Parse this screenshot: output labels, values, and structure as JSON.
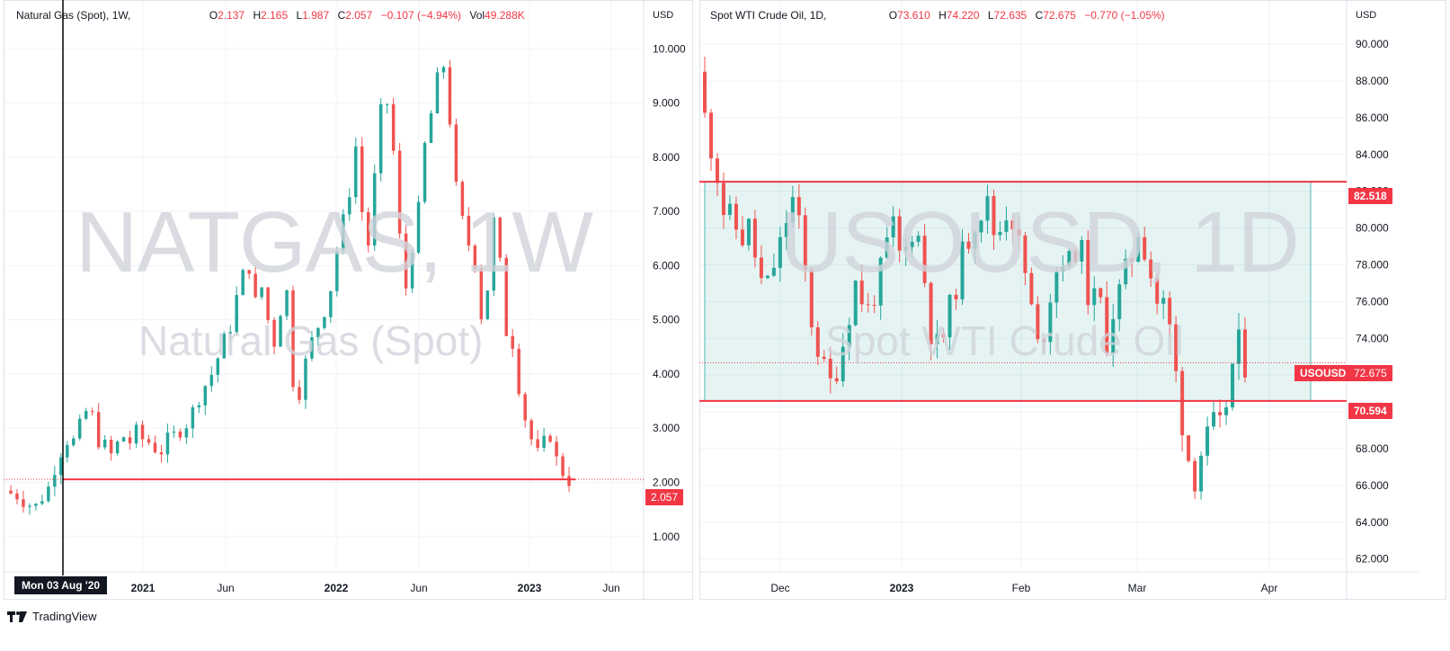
{
  "brand": {
    "name": "TradingView",
    "icon": "tradingview-logo-icon"
  },
  "left": {
    "legend": {
      "symbol": "Natural Gas (Spot), 1W,",
      "open": "2.137",
      "high": "2.165",
      "low": "1.987",
      "close": "2.057",
      "change": "−0.107 (−4.94%)",
      "volume": "49.288K"
    },
    "watermark": {
      "ticker": "NATGAS, 1W",
      "name": "Natural Gas (Spot)"
    },
    "currency": "USD",
    "current_price": "2.057",
    "crosshair_date": "Mon 03 Aug '20"
  },
  "right": {
    "legend": {
      "symbol": "Spot WTI Crude Oil, 1D,",
      "open": "73.610",
      "high": "74.220",
      "low": "72.635",
      "close": "72.675",
      "change": "−0.770 (−1.05%)"
    },
    "watermark": {
      "ticker": "USOUSD, 1D",
      "name": "Spot WTI Crude Oil"
    },
    "currency": "USD",
    "current_price": "72.675",
    "current_symbol": "USOUSD",
    "range_high_label": "82.518",
    "range_low_label": "70.594"
  },
  "chart_data": [
    {
      "type": "candlestick",
      "title": "Natural Gas (Spot), 1W",
      "x_tick_labels": [
        "2021",
        "Jun",
        "2022",
        "Jun",
        "2023",
        "Jun"
      ],
      "y_tick_labels": [
        "1.000",
        "2.000",
        "3.000",
        "4.000",
        "5.000",
        "6.000",
        "7.000",
        "8.000",
        "9.000",
        "10.000"
      ],
      "ylim": [
        0.35,
        10.9
      ],
      "ylabel": "USD",
      "series": [
        {
          "name": "Natural Gas (Spot)",
          "close_path": [
            1.85,
            1.8,
            1.78,
            1.7,
            1.6,
            1.55,
            1.75,
            1.9,
            2.3,
            2.6,
            2.8,
            2.75,
            3.0,
            3.3,
            3.2,
            2.8,
            2.65,
            2.5,
            2.7,
            2.85,
            2.75,
            2.9,
            2.8,
            2.75,
            2.65,
            2.6,
            2.75,
            2.85,
            3.0,
            3.1,
            3.3,
            3.6,
            3.8,
            4.0,
            4.3,
            4.6,
            4.9,
            5.4,
            5.8,
            6.0,
            5.3,
            5.6,
            5.0,
            4.6,
            5.2,
            5.5,
            3.9,
            3.7,
            4.2,
            4.6,
            4.9,
            5.2,
            5.6,
            6.3,
            6.8,
            7.4,
            8.2,
            7.0,
            6.4,
            7.6,
            8.8,
            9.0,
            8.1,
            6.5,
            5.6,
            6.4,
            7.0,
            8.2,
            8.8,
            9.4,
            9.7,
            8.7,
            7.4,
            6.8,
            6.4,
            6.1,
            5.1,
            5.6,
            6.8,
            6.0,
            4.8,
            4.6,
            3.8,
            3.2,
            2.8,
            2.5,
            2.7,
            2.9,
            2.4,
            2.2,
            2.057
          ]
        }
      ]
    },
    {
      "type": "candlestick",
      "title": "Spot WTI Crude Oil, 1D",
      "x_tick_labels": [
        "Dec",
        "2023",
        "Feb",
        "Mar",
        "Apr"
      ],
      "y_tick_labels": [
        "62.000",
        "64.000",
        "66.000",
        "68.000",
        "70.000",
        "72.000",
        "74.000",
        "76.000",
        "78.000",
        "80.000",
        "82.000",
        "84.000",
        "86.000",
        "88.000",
        "90.000"
      ],
      "ylim": [
        61.3,
        92.4
      ],
      "ylabel": "USD",
      "series": [
        {
          "name": "Spot WTI Crude Oil",
          "close_path": [
            88.5,
            86.0,
            84.5,
            83.0,
            81.0,
            80.5,
            80.0,
            79.5,
            80.0,
            78.5,
            77.0,
            76.8,
            78.0,
            79.0,
            80.5,
            81.5,
            80.0,
            77.5,
            75.0,
            73.5,
            72.2,
            71.5,
            72.5,
            73.8,
            75.5,
            77.0,
            76.2,
            75.5,
            76.5,
            77.5,
            79.0,
            80.0,
            78.5,
            78.8,
            80.0,
            79.5,
            77.2,
            74.5,
            73.5,
            74.2,
            75.5,
            77.0,
            78.5,
            79.5,
            80.5,
            81.0,
            81.2,
            79.8,
            80.0,
            81.0,
            80.5,
            79.0,
            77.5,
            75.5,
            73.5,
            74.5,
            76.5,
            77.8,
            78.5,
            78.0,
            79.0,
            78.5,
            76.5,
            76.0,
            75.8,
            74.0,
            75.5,
            76.5,
            77.5,
            78.5,
            80.0,
            79.0,
            77.5,
            76.0,
            75.8,
            74.5,
            72.0,
            69.5,
            67.5,
            66.5,
            67.8,
            68.5,
            69.2,
            69.0,
            70.5,
            72.5,
            73.6,
            72.675
          ]
        }
      ],
      "range_box": {
        "high": 82.518,
        "low": 70.594
      }
    }
  ]
}
